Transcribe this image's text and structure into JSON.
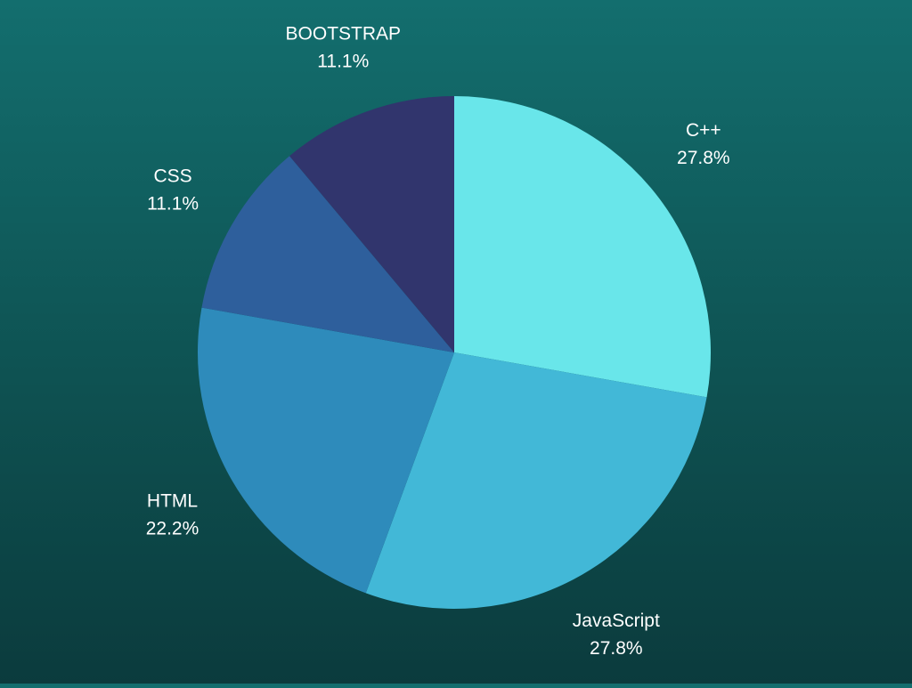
{
  "chart_data": {
    "type": "pie",
    "title": "",
    "start_angle_deg": 0,
    "direction": "clockwise",
    "label_color": "#ffffff",
    "slices": [
      {
        "label": "C++",
        "value": 27.8,
        "value_label": "27.8%",
        "color": "#69e6ea"
      },
      {
        "label": "JavaScript",
        "value": 27.8,
        "value_label": "27.8%",
        "color": "#42b8d7"
      },
      {
        "label": "HTML",
        "value": 22.2,
        "value_label": "22.2%",
        "color": "#2e8bbb"
      },
      {
        "label": "CSS",
        "value": 11.1,
        "value_label": "11.1%",
        "color": "#2e5f9c"
      },
      {
        "label": "BOOTSTRAP",
        "value": 11.1,
        "value_label": "11.1%",
        "color": "#31356d"
      }
    ]
  }
}
